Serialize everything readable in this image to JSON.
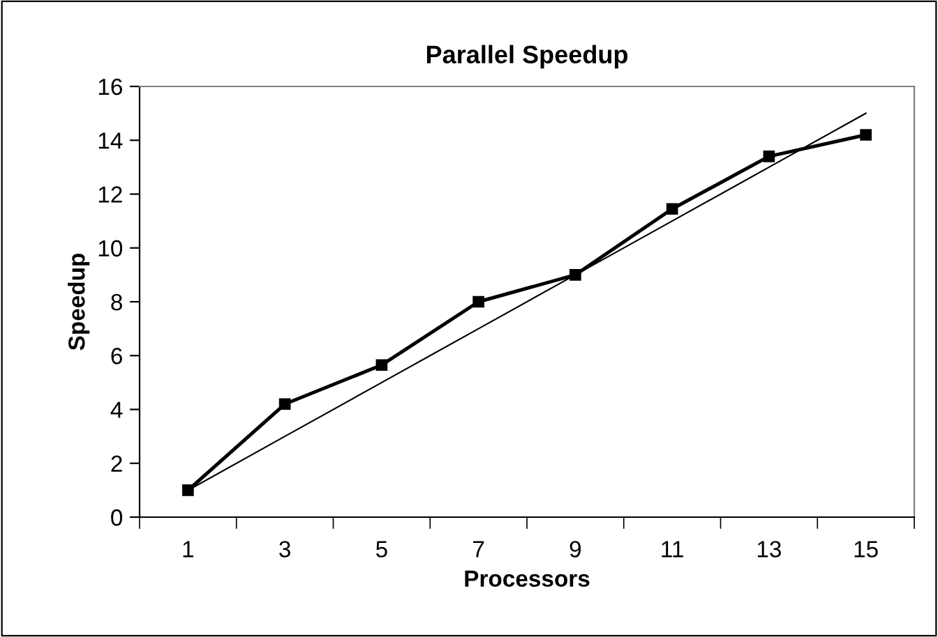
{
  "chart_data": {
    "type": "line",
    "title": "Parallel Speedup",
    "xlabel": "Processors",
    "ylabel": "Speedup",
    "categories": [
      "1",
      "3",
      "5",
      "7",
      "9",
      "11",
      "13",
      "15"
    ],
    "series": [
      {
        "color": "#000000",
        "marker": "square",
        "values": [
          1.0,
          4.2,
          5.65,
          8.0,
          9.0,
          11.45,
          13.4,
          14.2
        ]
      },
      {
        "color": "#000000",
        "marker": "none",
        "values": [
          1,
          3,
          5,
          7,
          9,
          11,
          13,
          15
        ]
      }
    ],
    "ylim": [
      0,
      16
    ],
    "yticks": [
      0,
      2,
      4,
      6,
      8,
      10,
      12,
      14,
      16
    ],
    "grid": false
  }
}
